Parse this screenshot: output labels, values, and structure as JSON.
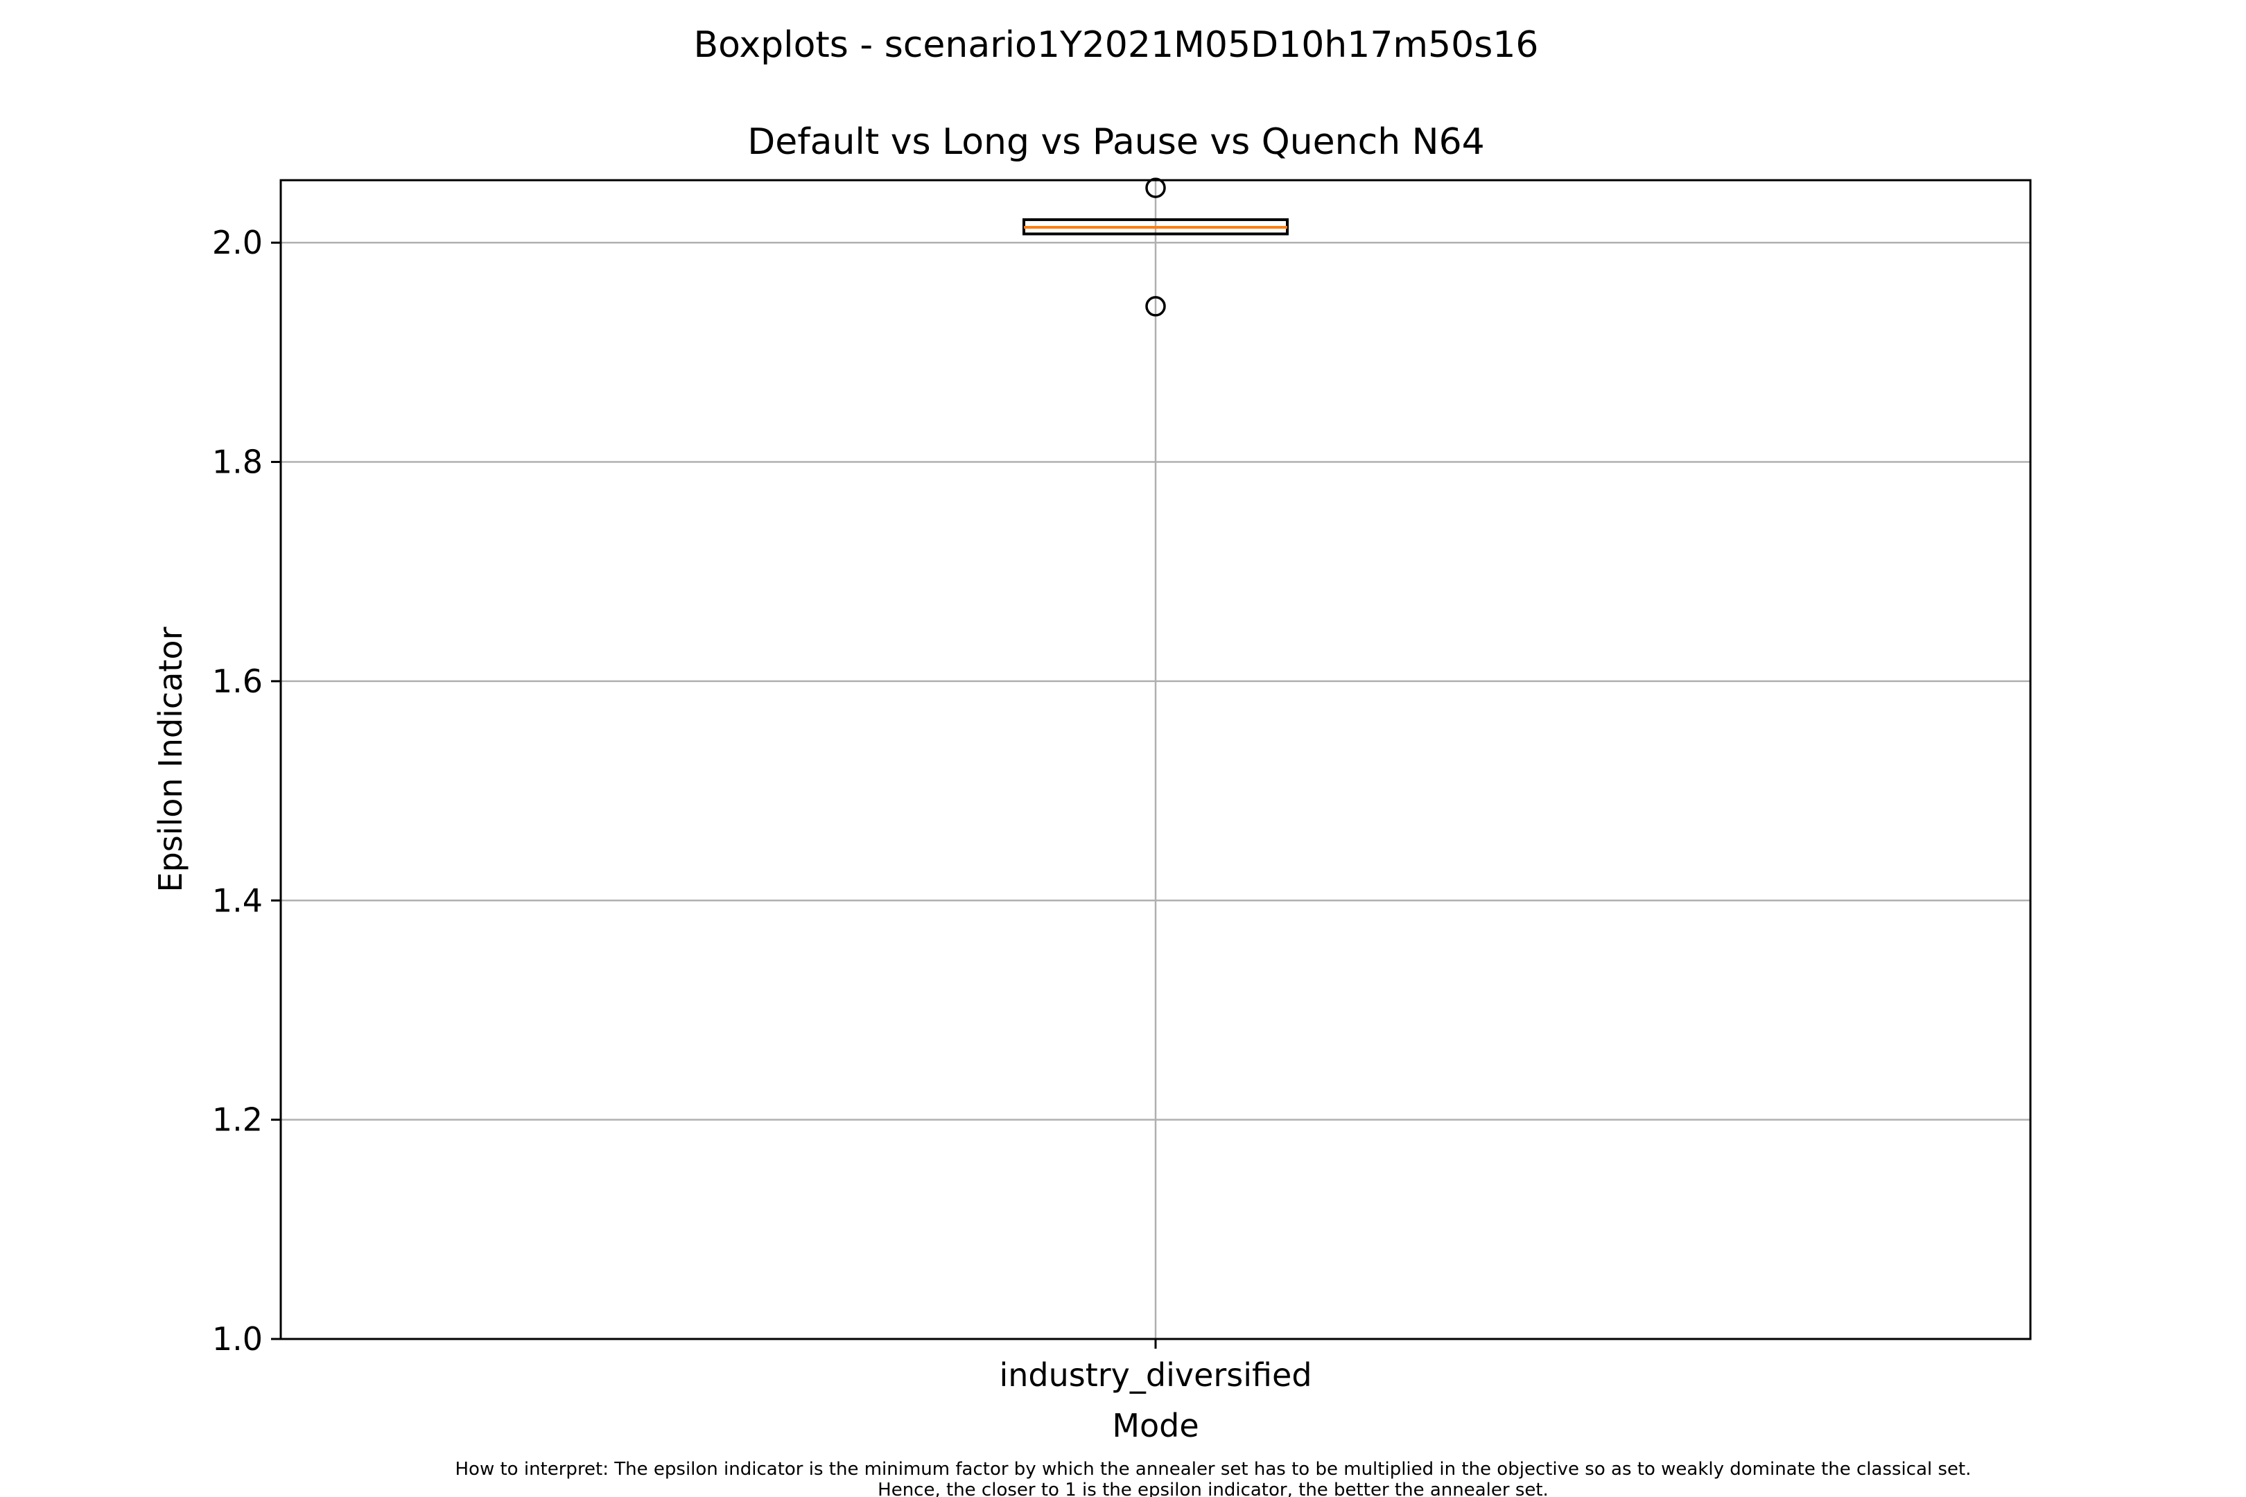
{
  "chart_data": {
    "type": "box",
    "title": "Boxplots - scenario1Y2021M05D10h17m50s16",
    "subtitle": "Default vs Long vs Pause vs Quench N64",
    "xlabel": "Mode",
    "ylabel": "Epsilon Indicator",
    "categories": [
      "industry_diversified"
    ],
    "ylim": [
      1.0,
      2.057
    ],
    "yticks": [
      "1.0",
      "1.2",
      "1.4",
      "1.6",
      "1.8",
      "2.0"
    ],
    "grid": true,
    "boxes": [
      {
        "category": "industry_diversified",
        "q1": 2.008,
        "median": 2.014,
        "q3": 2.021,
        "whisker_low": 2.008,
        "whisker_high": 2.021,
        "outliers": [
          2.05,
          1.942
        ]
      }
    ],
    "colors": {
      "median": "#ff7f0e",
      "box": "#000000",
      "grid": "#b0b0b0"
    },
    "footnote": [
      "How to interpret: The epsilon indicator is the minimum factor by which the annealer set has to be multiplied in the objective so as to weakly dominate the classical set.",
      "Hence, the closer to 1 is the epsilon indicator, the better the annealer set."
    ]
  }
}
